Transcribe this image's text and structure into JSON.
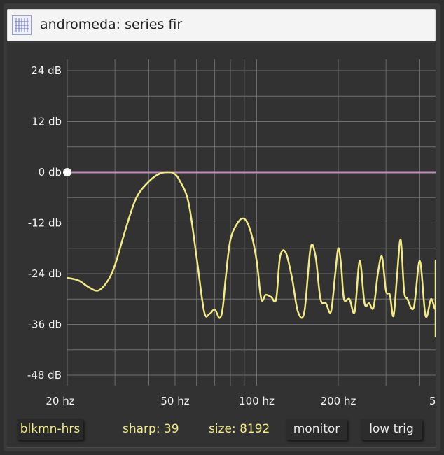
{
  "window": {
    "title": "andromeda: series fir",
    "app_icon": "filter-grid-icon"
  },
  "plot": {
    "y_ticks": [
      "24 dB",
      "12 db",
      "0 db",
      "-12 db",
      "-24 db",
      "-36 db",
      "-48 dB"
    ],
    "x_ticks": [
      "20 hz",
      "50 hz",
      "100 hz",
      "200 hz",
      "5"
    ],
    "colors": {
      "curve": "#f2ea83",
      "reference_line": "#b98fb5",
      "grid": "#6b6b6b",
      "background": "#323232"
    }
  },
  "chart_data": {
    "type": "line",
    "title": "",
    "xlabel": "",
    "ylabel": "",
    "x_scale": "log",
    "xlim": [
      20,
      500
    ],
    "ylim": [
      -48,
      24
    ],
    "grid": true,
    "series": [
      {
        "x": [
          20,
          22,
          24,
          26,
          28,
          30,
          33,
          36,
          40,
          44,
          48,
          50,
          52,
          56,
          60,
          64,
          67,
          70,
          73,
          75,
          77,
          80,
          85,
          90,
          95,
          100,
          104,
          108,
          113,
          118,
          122,
          128,
          135,
          142,
          150,
          158,
          165,
          172,
          180,
          188,
          195,
          200,
          205,
          210,
          220,
          230,
          240,
          250,
          260,
          270,
          280,
          290,
          300,
          310,
          320,
          330,
          340,
          350,
          360,
          380,
          400,
          420,
          440,
          460,
          480,
          500
        ],
        "y": [
          -25,
          -25.6,
          -27.2,
          -28,
          -26,
          -22,
          -13,
          -6,
          -2.2,
          -0.3,
          0,
          -0.5,
          -2,
          -7,
          -20,
          -33,
          -33.5,
          -32.5,
          -34.5,
          -32,
          -24.5,
          -16,
          -12,
          -11,
          -14,
          -21,
          -30,
          -29,
          -29.5,
          -30,
          -20,
          -19,
          -25,
          -33,
          -33,
          -18,
          -20,
          -30,
          -31,
          -33,
          -24,
          -18,
          -22,
          -30,
          -30,
          -33,
          -21,
          -31,
          -31,
          -32,
          -24,
          -20,
          -28,
          -29,
          -34,
          -24,
          -16,
          -28,
          -30,
          -32,
          -21,
          -34,
          -30,
          -32,
          -21,
          -39
        ]
      },
      {
        "x": [
          20,
          500
        ],
        "y": [
          0,
          0
        ]
      }
    ],
    "marker": {
      "x": 20,
      "y": 0
    }
  },
  "footer": {
    "window_type": "blkmn-hrs",
    "sharp": "sharp: 39",
    "size": "size: 8192",
    "monitor_label": "monitor",
    "trigger_label": "low trig"
  }
}
